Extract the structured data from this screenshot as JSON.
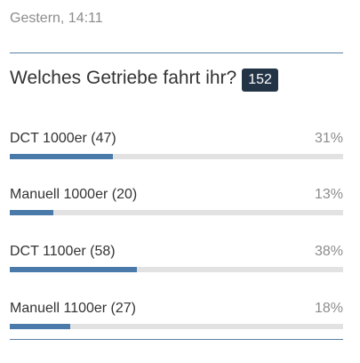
{
  "post": {
    "timestamp": "Gestern, 14:11"
  },
  "poll": {
    "question": "Welches Getriebe fahrt ihr?",
    "total_votes": "152",
    "options": [
      {
        "label": "DCT 1000er (47)",
        "percent_label": "31%",
        "fraction": 0.31
      },
      {
        "label": "Manuell 1000er (20)",
        "percent_label": "13%",
        "fraction": 0.13
      },
      {
        "label": "DCT 1100er (58)",
        "percent_label": "38%",
        "fraction": 0.38
      },
      {
        "label": "Manuell 1100er (27)",
        "percent_label": "18%",
        "fraction": 0.18
      }
    ]
  },
  "colors": {
    "bar_fill": "#4a7aa9",
    "bar_track": "#e2e2e2",
    "badge_bg": "#243447",
    "divider": "#5b7fa3"
  }
}
